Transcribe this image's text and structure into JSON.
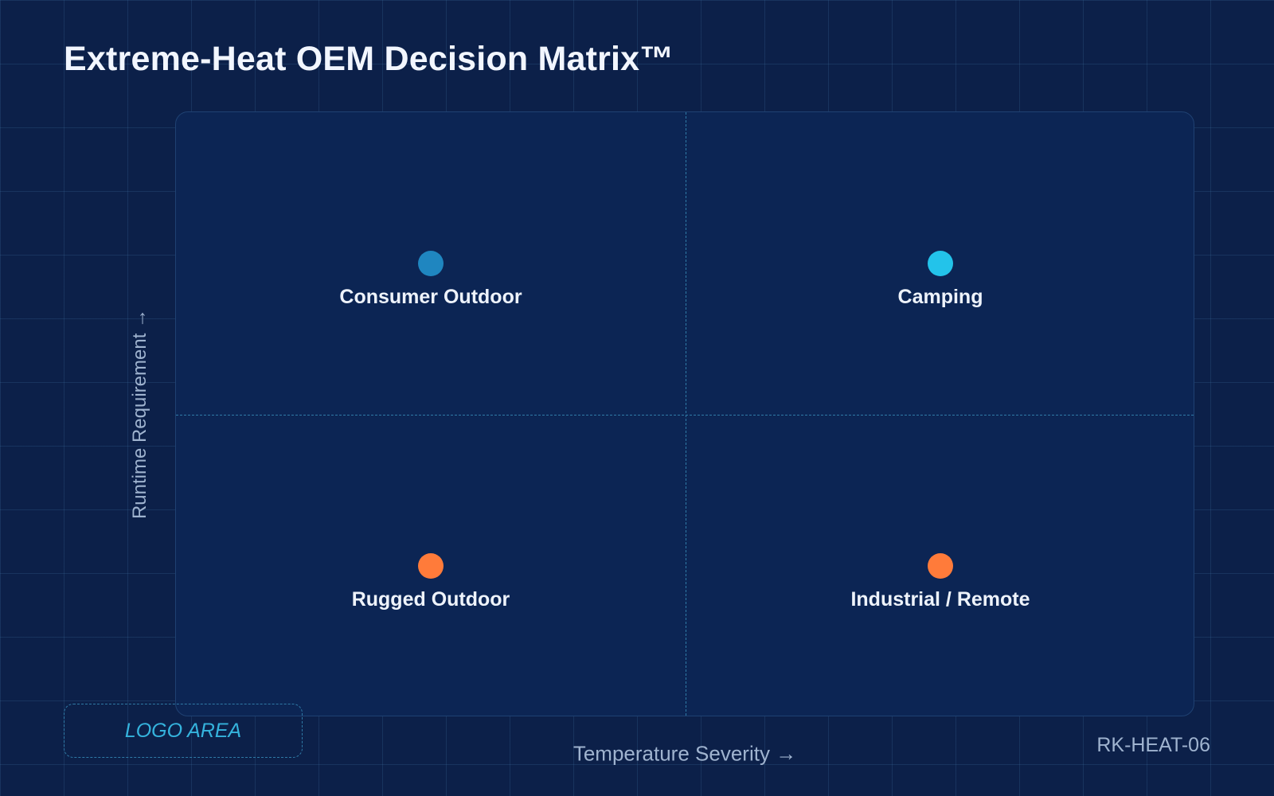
{
  "title": "Extreme-Heat OEM Decision Matrix™",
  "axes": {
    "x_label": "Temperature Severity →",
    "y_label": "Runtime Requirement →"
  },
  "quadrants": [
    {
      "label": "Consumer Outdoor",
      "position": "top-left",
      "dot_color": "#1f86c0"
    },
    {
      "label": "Camping",
      "position": "top-right",
      "dot_color": "#23c3ea"
    },
    {
      "label": "Rugged Outdoor",
      "position": "bottom-left",
      "dot_color": "#ff7b3a"
    },
    {
      "label": "Industrial / Remote",
      "position": "bottom-right",
      "dot_color": "#ff7b3a"
    }
  ],
  "logo_placeholder": "LOGO AREA",
  "reference_code": "RK-HEAT-06"
}
